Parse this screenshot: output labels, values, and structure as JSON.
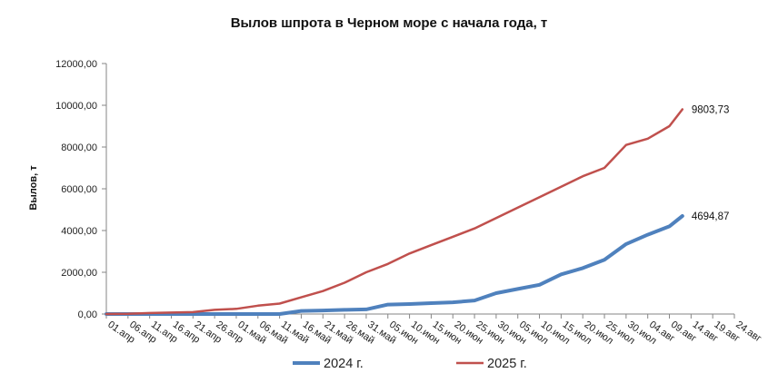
{
  "chart_data": {
    "type": "line",
    "title": "Вылов шпрота в Черном море с начала года, т",
    "ylabel": "Вылов, т",
    "xlabel": "",
    "ylim": [
      0,
      12000
    ],
    "y_ticks": [
      "0,00",
      "2000,00",
      "4000,00",
      "6000,00",
      "8000,00",
      "10000,00",
      "12000,00"
    ],
    "x_ticks": [
      "01.апр",
      "06.апр",
      "11.апр",
      "16.апр",
      "21.апр",
      "26.апр",
      "01.май",
      "06.май",
      "11.май",
      "16.май",
      "21.май",
      "26.май",
      "31.май",
      "05.июн",
      "10.июн",
      "15.июн",
      "20.июн",
      "25.июн",
      "30.июн",
      "05.июл",
      "10.июл",
      "15.июл",
      "20.июл",
      "25.июл",
      "30.июл",
      "04.авг",
      "09.авг",
      "14.авг",
      "19.авг",
      "24.авг"
    ],
    "grid": false,
    "legend": "bottom",
    "series": [
      {
        "name": "2024 г.",
        "color": "#4F81BD",
        "end_label": "4694,87",
        "points": [
          [
            "01.апр",
            0
          ],
          [
            "06.апр",
            0
          ],
          [
            "11.апр",
            0
          ],
          [
            "16.апр",
            0
          ],
          [
            "21.апр",
            0
          ],
          [
            "26.апр",
            0
          ],
          [
            "01.май",
            0
          ],
          [
            "06.май",
            0
          ],
          [
            "11.май",
            0
          ],
          [
            "16.май",
            150
          ],
          [
            "21.май",
            170
          ],
          [
            "26.май",
            200
          ],
          [
            "31.май",
            220
          ],
          [
            "05.июн",
            450
          ],
          [
            "10.июн",
            480
          ],
          [
            "15.июн",
            520
          ],
          [
            "20.июн",
            560
          ],
          [
            "25.июн",
            650
          ],
          [
            "30.июн",
            1000
          ],
          [
            "05.июл",
            1200
          ],
          [
            "10.июл",
            1400
          ],
          [
            "15.июл",
            1900
          ],
          [
            "20.июл",
            2200
          ],
          [
            "25.июл",
            2600
          ],
          [
            "30.июл",
            3350
          ],
          [
            "04.авг",
            3800
          ],
          [
            "09.авг",
            4200
          ],
          [
            "12.авг",
            4694.87
          ]
        ]
      },
      {
        "name": "2025 г.",
        "color": "#C0504D",
        "end_label": "9803,73",
        "points": [
          [
            "01.апр",
            0
          ],
          [
            "06.апр",
            10
          ],
          [
            "11.апр",
            50
          ],
          [
            "16.апр",
            70
          ],
          [
            "21.апр",
            90
          ],
          [
            "26.апр",
            200
          ],
          [
            "01.май",
            250
          ],
          [
            "06.май",
            400
          ],
          [
            "11.май",
            500
          ],
          [
            "16.май",
            800
          ],
          [
            "21.май",
            1100
          ],
          [
            "26.май",
            1500
          ],
          [
            "31.май",
            2000
          ],
          [
            "05.июн",
            2400
          ],
          [
            "10.июн",
            2900
          ],
          [
            "15.июн",
            3300
          ],
          [
            "20.июн",
            3700
          ],
          [
            "25.июн",
            4100
          ],
          [
            "30.июн",
            4600
          ],
          [
            "05.июл",
            5100
          ],
          [
            "10.июл",
            5600
          ],
          [
            "15.июл",
            6100
          ],
          [
            "20.июл",
            6600
          ],
          [
            "25.июл",
            7000
          ],
          [
            "30.июл",
            8100
          ],
          [
            "04.авг",
            8400
          ],
          [
            "09.авг",
            9000
          ],
          [
            "12.авг",
            9803.73
          ]
        ]
      }
    ]
  }
}
